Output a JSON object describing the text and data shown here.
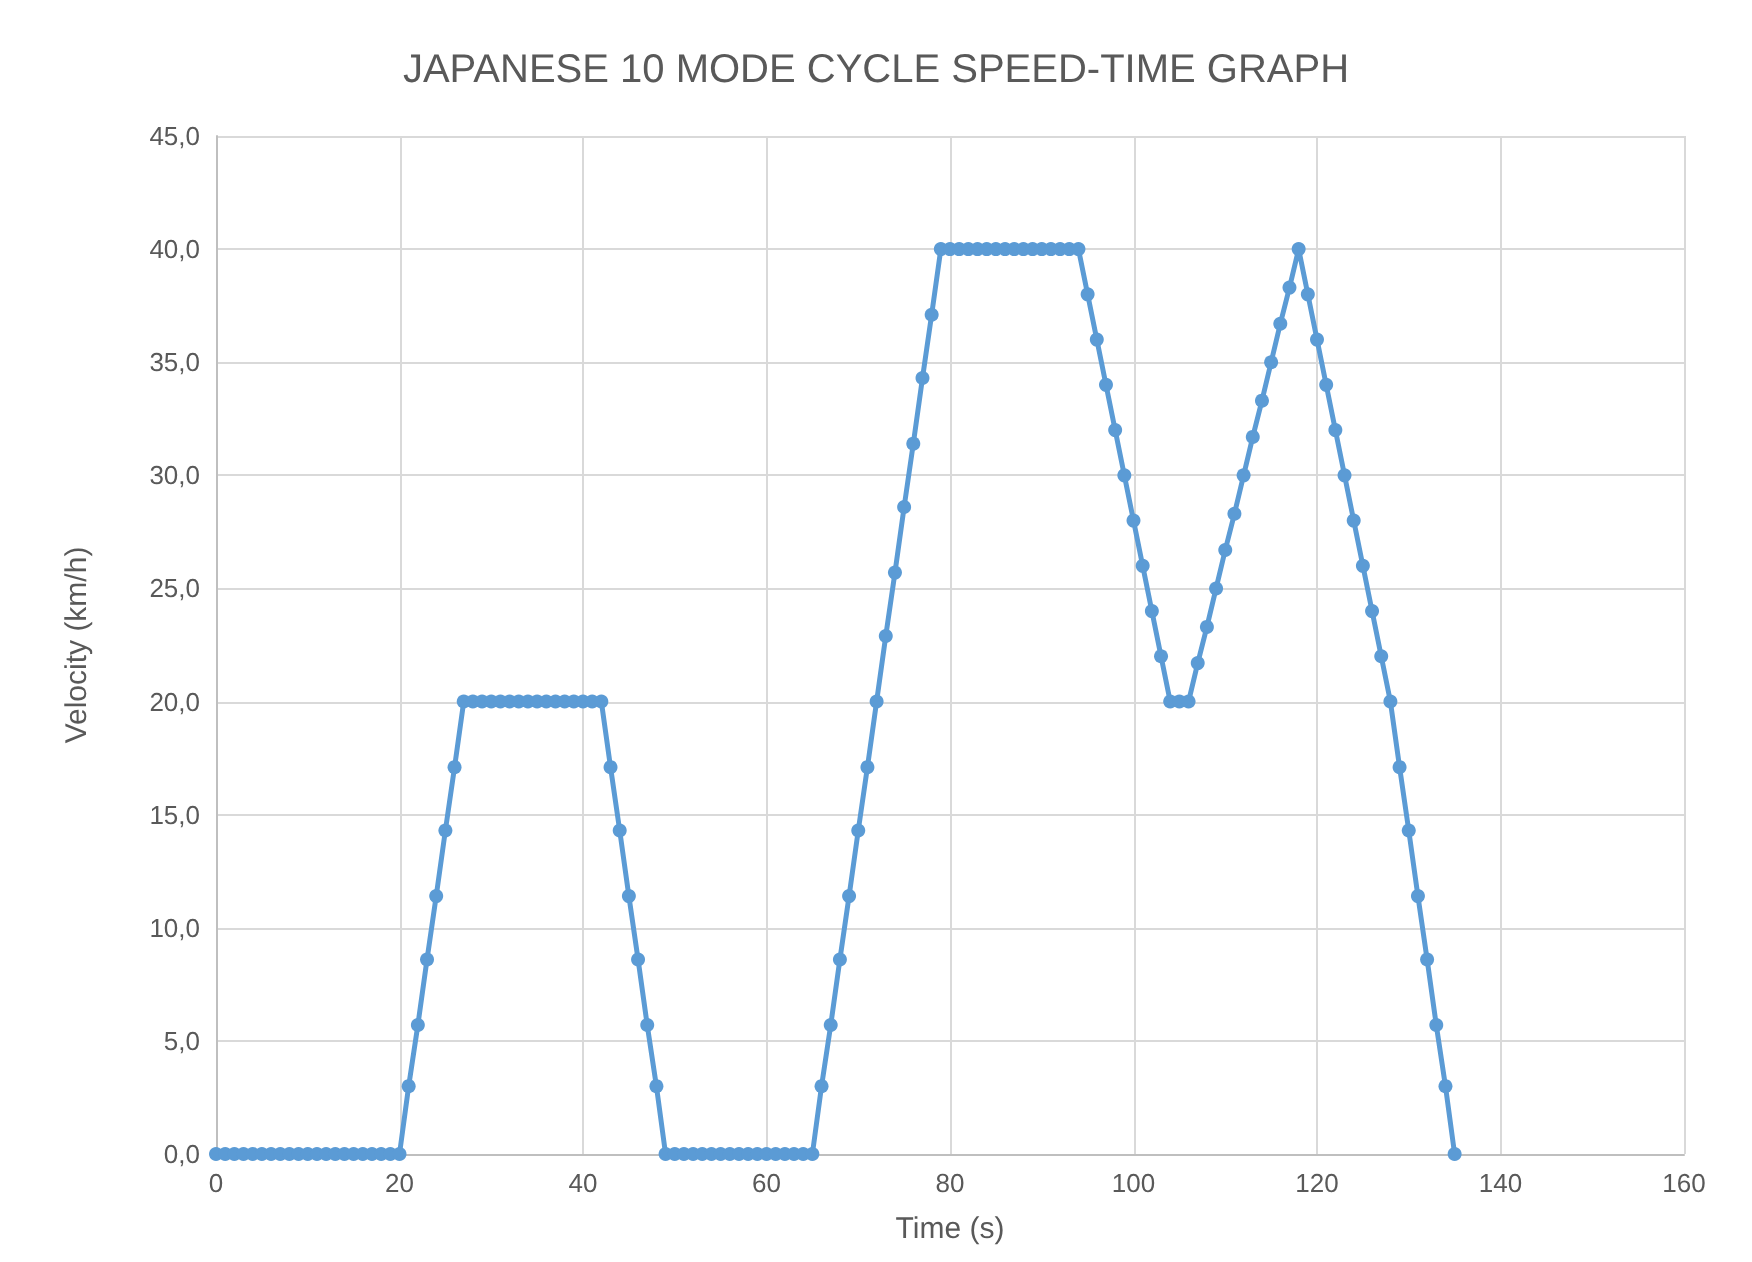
{
  "chart_data": {
    "type": "line",
    "title": "JAPANESE 10 MODE CYCLE SPEED-TIME GRAPH",
    "xlabel": "Time (s)",
    "ylabel": "Velocity (km/h)",
    "x": [
      0,
      1,
      2,
      3,
      4,
      5,
      6,
      7,
      8,
      9,
      10,
      11,
      12,
      13,
      14,
      15,
      16,
      17,
      18,
      19,
      20,
      21,
      22,
      23,
      24,
      25,
      26,
      27,
      28,
      29,
      30,
      31,
      32,
      33,
      34,
      35,
      36,
      37,
      38,
      39,
      40,
      41,
      42,
      43,
      44,
      45,
      46,
      47,
      48,
      49,
      50,
      51,
      52,
      53,
      54,
      55,
      56,
      57,
      58,
      59,
      60,
      61,
      62,
      63,
      64,
      65,
      66,
      67,
      68,
      69,
      70,
      71,
      72,
      73,
      74,
      75,
      76,
      77,
      78,
      79,
      80,
      81,
      82,
      83,
      84,
      85,
      86,
      87,
      88,
      89,
      90,
      91,
      92,
      93,
      94,
      95,
      96,
      97,
      98,
      99,
      100,
      101,
      102,
      103,
      104,
      105,
      106,
      107,
      108,
      109,
      110,
      111,
      112,
      113,
      114,
      115,
      116,
      117,
      118,
      119,
      120,
      121,
      122,
      123,
      124,
      125,
      126,
      127,
      128,
      129,
      130,
      131,
      132,
      133,
      134,
      135
    ],
    "series": [
      {
        "color": "#5b9bd5",
        "values": [
          0,
          0,
          0,
          0,
          0,
          0,
          0,
          0,
          0,
          0,
          0,
          0,
          0,
          0,
          0,
          0,
          0,
          0,
          0,
          0,
          0,
          3,
          5.7,
          8.6,
          11.4,
          14.3,
          17.1,
          20,
          20,
          20,
          20,
          20,
          20,
          20,
          20,
          20,
          20,
          20,
          20,
          20,
          20,
          20,
          20,
          17.1,
          14.3,
          11.4,
          8.6,
          5.7,
          3,
          0,
          0,
          0,
          0,
          0,
          0,
          0,
          0,
          0,
          0,
          0,
          0,
          0,
          0,
          0,
          0,
          0,
          3,
          5.7,
          8.6,
          11.4,
          14.3,
          17.1,
          20,
          22.9,
          25.7,
          28.6,
          31.4,
          34.3,
          37.1,
          40,
          40,
          40,
          40,
          40,
          40,
          40,
          40,
          40,
          40,
          40,
          40,
          40,
          40,
          40,
          40,
          38,
          36,
          34,
          32,
          30,
          28,
          26,
          24,
          22,
          20,
          20,
          20,
          21.7,
          23.3,
          25,
          26.7,
          28.3,
          30,
          31.7,
          33.3,
          35,
          36.7,
          38.3,
          40,
          38,
          36,
          34,
          32,
          30,
          28,
          26,
          24,
          22,
          20,
          17.1,
          14.3,
          11.4,
          8.6,
          5.7,
          3,
          0
        ]
      }
    ],
    "xlim": [
      0,
      160
    ],
    "xticks": [
      0,
      20,
      40,
      60,
      80,
      100,
      120,
      140,
      160
    ],
    "ylim": [
      0,
      45
    ],
    "yticks": [
      {
        "value": 0,
        "label": "0,0"
      },
      {
        "value": 5,
        "label": "5,0"
      },
      {
        "value": 10,
        "label": "10,0"
      },
      {
        "value": 15,
        "label": "15,0"
      },
      {
        "value": 20,
        "label": "20,0"
      },
      {
        "value": 25,
        "label": "25,0"
      },
      {
        "value": 30,
        "label": "30,0"
      },
      {
        "value": 35,
        "label": "35,0"
      },
      {
        "value": 40,
        "label": "40,0"
      },
      {
        "value": 45,
        "label": "45,0"
      }
    ],
    "grid": true,
    "marker": "circle",
    "line_style": "solid"
  }
}
